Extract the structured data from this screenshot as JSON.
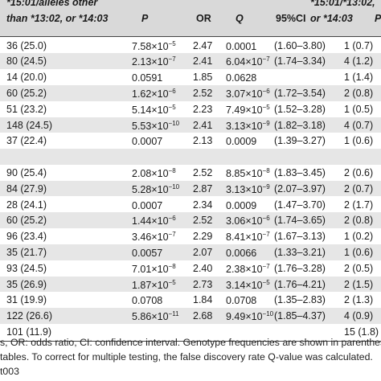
{
  "header": {
    "col1_line1": "*15:01/alleles other",
    "col1_line2": "than *13:02, or *14:03",
    "p": "P",
    "or": "OR",
    "q": "Q",
    "ci": "95%CI",
    "col6_line1": "*15:01/*13:02,",
    "col6_line2": "or *14:03",
    "col7": "P"
  },
  "rows": [
    {
      "count": "36 (25.0)",
      "p": "7.58×10",
      "p_exp": "−5",
      "or": "2.47",
      "q": "0.0001",
      "q_exp": "",
      "ci": "(1.60–3.80)",
      "count2": "1 (0.7)",
      "shade": false
    },
    {
      "count": "80 (24.5)",
      "p": "2.13×10",
      "p_exp": "−7",
      "or": "2.41",
      "q": "6.04×10",
      "q_exp": "−7",
      "ci": "(1.74–3.34)",
      "count2": "4 (1.2)",
      "shade": true
    },
    {
      "count": "14 (20.0)",
      "p": "0.0591",
      "p_exp": "",
      "or": "1.85",
      "q": "0.0628",
      "q_exp": "",
      "ci": "",
      "count2": "1 (1.4)",
      "shade": false
    },
    {
      "count": "60 (25.2)",
      "p": "1.62×10",
      "p_exp": "−6",
      "or": "2.52",
      "q": "3.07×10",
      "q_exp": "−6",
      "ci": "(1.72–3.54)",
      "count2": "2 (0.8)",
      "shade": true
    },
    {
      "count": "51 (23.2)",
      "p": "5.14×10",
      "p_exp": "−5",
      "or": "2.23",
      "q": "7.49×10",
      "q_exp": "−5",
      "ci": "(1.52–3.28)",
      "count2": "1 (0.5)",
      "shade": false
    },
    {
      "count": "148 (24.5)",
      "p": "5.53×10",
      "p_exp": "−10",
      "or": "2.41",
      "q": "3.13×10",
      "q_exp": "−9",
      "ci": "(1.82–3.18)",
      "count2": "4 (0.7)",
      "shade": true
    },
    {
      "count": "37 (22.4)",
      "p": "0.0007",
      "p_exp": "",
      "or": "2.13",
      "q": "0.0009",
      "q_exp": "",
      "ci": "(1.39–3.27)",
      "count2": "1 (0.6)",
      "shade": false
    },
    {
      "count": "",
      "p": "",
      "p_exp": "",
      "or": "",
      "q": "",
      "q_exp": "",
      "ci": "",
      "count2": "",
      "shade": true
    },
    {
      "count": "90 (25.4)",
      "p": "2.08×10",
      "p_exp": "−8",
      "or": "2.52",
      "q": "8.85×10",
      "q_exp": "−8",
      "ci": "(1.83–3.45)",
      "count2": "2 (0.6)",
      "shade": false
    },
    {
      "count": "84 (27.9)",
      "p": "5.28×10",
      "p_exp": "−10",
      "or": "2.87",
      "q": "3.13×10",
      "q_exp": "−9",
      "ci": "(2.07–3.97)",
      "count2": "2 (0.7)",
      "shade": true
    },
    {
      "count": "28 (24.1)",
      "p": "0.0007",
      "p_exp": "",
      "or": "2.34",
      "q": "0.0009",
      "q_exp": "",
      "ci": "(1.47–3.70)",
      "count2": "2 (1.7)",
      "shade": false
    },
    {
      "count": "60 (25.2)",
      "p": "1.44×10",
      "p_exp": "−6",
      "or": "2.52",
      "q": "3.06×10",
      "q_exp": "−6",
      "ci": "(1.74–3.65)",
      "count2": "2 (0.8)",
      "shade": true
    },
    {
      "count": "96 (23.4)",
      "p": "3.46×10",
      "p_exp": "−7",
      "or": "2.29",
      "q": "8.41×10",
      "q_exp": "−7",
      "ci": "(1.67–3.13)",
      "count2": "1 (0.2)",
      "shade": false
    },
    {
      "count": "35 (21.7)",
      "p": "0.0057",
      "p_exp": "",
      "or": "2.07",
      "q": "0.0066",
      "q_exp": "",
      "ci": "(1.33–3.21)",
      "count2": "1 (0.6)",
      "shade": true
    },
    {
      "count": "93 (24.5)",
      "p": "7.01×10",
      "p_exp": "−8",
      "or": "2.40",
      "q": "2.38×10",
      "q_exp": "−7",
      "ci": "(1.76–3.28)",
      "count2": "2 (0.5)",
      "shade": false
    },
    {
      "count": "35 (26.9)",
      "p": "1.87×10",
      "p_exp": "−5",
      "or": "2.73",
      "q": "3.14×10",
      "q_exp": "−5",
      "ci": "(1.76–4.21)",
      "count2": "2 (1.5)",
      "shade": true
    },
    {
      "count": "31 (19.9)",
      "p": "0.0708",
      "p_exp": "",
      "or": "1.84",
      "q": "0.0708",
      "q_exp": "",
      "ci": "(1.35–2.83)",
      "count2": "2 (1.3)",
      "shade": false
    },
    {
      "count": "122 (26.6)",
      "p": "5.86×10",
      "p_exp": "−11",
      "or": "2.68",
      "q": "9.49×10",
      "q_exp": "−10",
      "ci": "(1.85–4.37)",
      "count2": "4 (0.9)",
      "shade": true
    },
    {
      "count": "101 (11.9)",
      "p": "",
      "p_exp": "",
      "or": "",
      "q": "",
      "q_exp": "",
      "ci": "",
      "count2": "15 (1.8)",
      "shade": false
    }
  ],
  "footnotes": [
    "s, OR: odds ratio, CI: confidence interval. Genotype frequencies are shown in parenthesis (%). A-",
    "tables. To correct for multiple testing, the false discovery rate Q-value was calculated.",
    "t003"
  ]
}
